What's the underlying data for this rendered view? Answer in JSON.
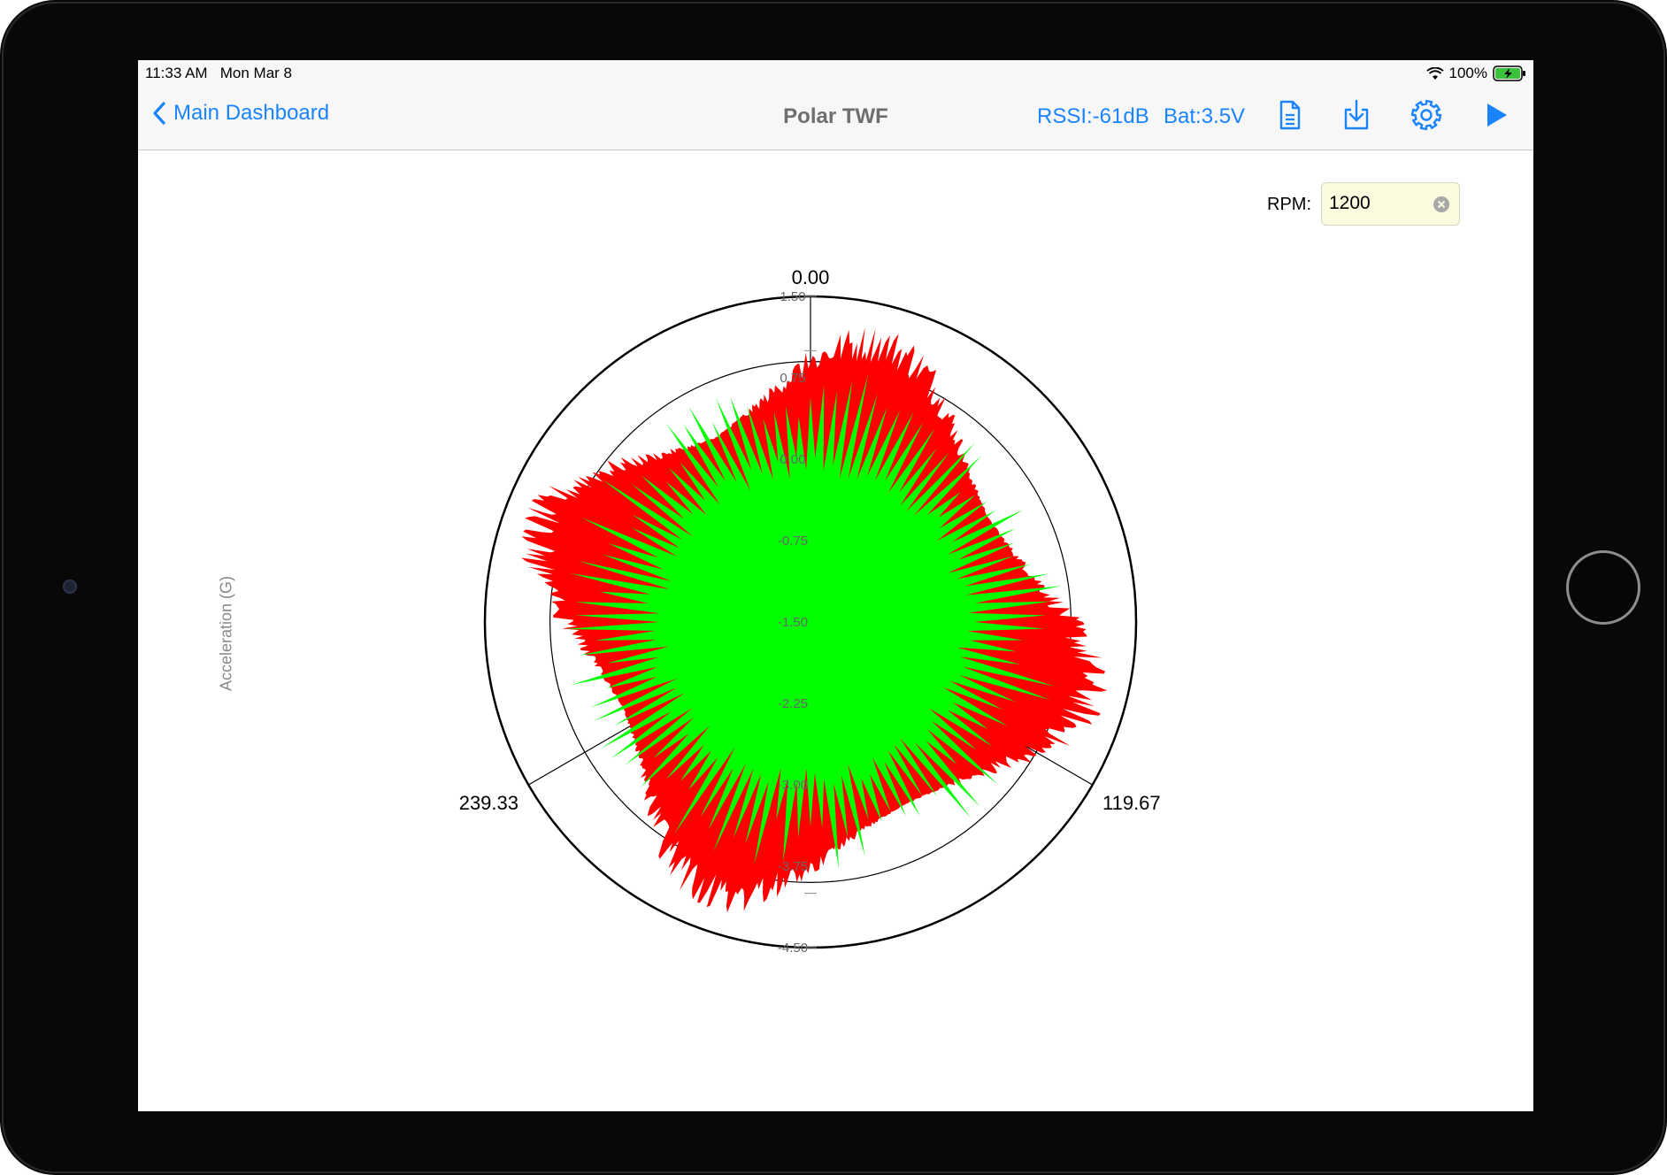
{
  "status": {
    "time": "11:33 AM",
    "date": "Mon Mar 8",
    "battery": "100%"
  },
  "nav": {
    "back_label": "Main Dashboard",
    "title": "Polar TWF",
    "rssi": "RSSI:-61dB",
    "battery": "Bat:3.5V",
    "icons": [
      "document-icon",
      "download-icon",
      "gear-icon",
      "play-icon"
    ]
  },
  "rpm": {
    "label": "RPM:",
    "value": "1200"
  },
  "chart_data": {
    "type": "polar-area",
    "ylabel": "Acceleration (G)",
    "angle_labels": [
      "0.00",
      "119.67",
      "239.33"
    ],
    "radial_ticks": [
      "1.50",
      "0.75",
      "0.00",
      "-0.75",
      "-1.50",
      "-2.25",
      "-3.00",
      "-3.75",
      "-4.50"
    ],
    "rlim": [
      -4.5,
      1.5
    ],
    "series": [
      {
        "color": "#ff0000",
        "lobes_deg": [
          15,
          105,
          200,
          290
        ],
        "peak": 0.9,
        "base": -0.75
      },
      {
        "color": "#0000ff",
        "lobes_deg": [
          30,
          120,
          210,
          300
        ],
        "peak": -0.2,
        "base": -1.5
      },
      {
        "color": "#00ff00",
        "peak": 0.2,
        "base": -1.2
      }
    ],
    "colors": {
      "red": "#ff0000",
      "blue": "#0000ff",
      "green": "#00ff00"
    }
  }
}
